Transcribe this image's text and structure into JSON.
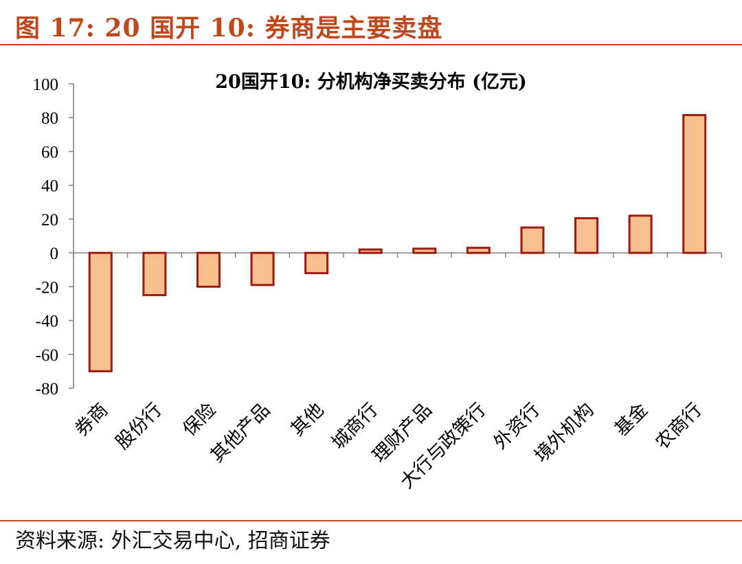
{
  "figure_title": "图 17:  20 国开 10:  券商是主要卖盘",
  "source_text": "资料来源:  外汇交易中心,  招商证券",
  "colors": {
    "accent": "#c0471a",
    "bar_fill": "#f9c08f",
    "bar_stroke": "#9b1a0f",
    "axis": "#7f7f7f"
  },
  "chart_data": {
    "type": "bar",
    "title": "20国开10:  分机构净买卖分布 (亿元)",
    "categories": [
      "券商",
      "股份行",
      "保险",
      "其他产品",
      "其他",
      "城商行",
      "理财产品",
      "大行与政策行",
      "外资行",
      "境外机构",
      "基金",
      "农商行"
    ],
    "values": [
      -70,
      -25,
      -20,
      -19,
      -12,
      2,
      2.5,
      3,
      15,
      20.5,
      22,
      81.5
    ],
    "ylim": [
      -80,
      100
    ],
    "yticks": [
      100,
      80,
      60,
      40,
      20,
      0,
      -20,
      -40,
      -60,
      -80
    ],
    "xlabel": "",
    "ylabel": "",
    "grid": false,
    "legend": "none"
  }
}
